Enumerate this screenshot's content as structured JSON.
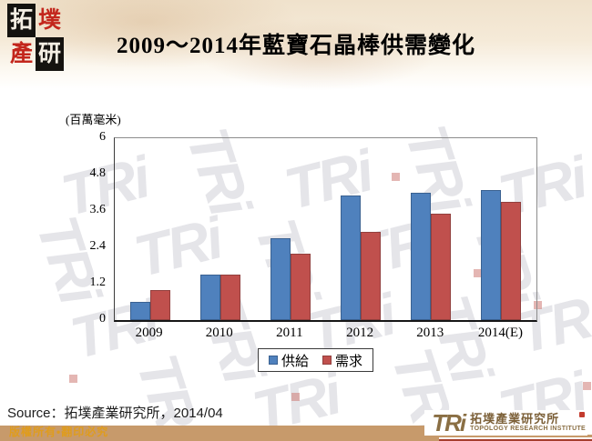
{
  "header": {
    "title": "2009～2014年藍寶石晶棒供需變化",
    "seal_chars": [
      "拓",
      "墣",
      "產",
      "研"
    ]
  },
  "chart_data": {
    "type": "bar",
    "title": "2009～2014年藍寶石晶棒供需變化",
    "unit_label": "(百萬毫米)",
    "categories": [
      "2009",
      "2010",
      "2011",
      "2012",
      "2013",
      "2014(E)"
    ],
    "series": [
      {
        "name": "供給",
        "color": "#4F81BD",
        "border": "#3A6191",
        "values": [
          0.6,
          1.5,
          2.7,
          4.1,
          4.2,
          4.3
        ]
      },
      {
        "name": "需求",
        "color": "#C0504D",
        "border": "#92403E",
        "values": [
          1.0,
          1.5,
          2.2,
          2.9,
          3.5,
          3.9
        ]
      }
    ],
    "ylim": [
      0,
      6
    ],
    "yticks": [
      "0",
      "1.2",
      "2.4",
      "3.6",
      "4.8",
      "6"
    ],
    "grid": false,
    "legend_position": "bottom-center"
  },
  "source_line": "Source：拓墣產業研究所，2014/04",
  "footer": {
    "copyright": "版權所有•翻印必究",
    "logo_mark": "TRi",
    "logo_cn": "拓墣產業研究所",
    "logo_en": "TOPOLOGY RESEARCH INSTITUTE"
  },
  "watermark_text": "TRi"
}
